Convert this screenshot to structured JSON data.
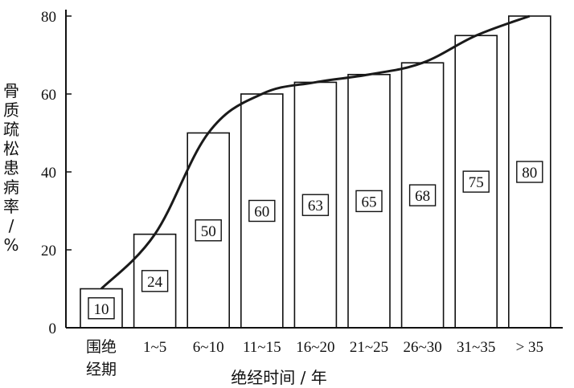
{
  "chart_data": {
    "type": "bar",
    "categories": [
      "围绝经期",
      "1~5",
      "6~10",
      "11~15",
      "16~20",
      "21~25",
      "26~30",
      "31~35",
      "> 35"
    ],
    "category_lines": [
      [
        "围绝",
        "经期"
      ],
      [
        "1~5"
      ],
      [
        "6~10"
      ],
      [
        "11~15"
      ],
      [
        "16~20"
      ],
      [
        "21~25"
      ],
      [
        "26~30"
      ],
      [
        "31~35"
      ],
      [
        "> 35"
      ]
    ],
    "values": [
      10,
      24,
      50,
      60,
      63,
      65,
      68,
      75,
      80
    ],
    "data_labels": [
      "10",
      "24",
      "50",
      "60",
      "63",
      "65",
      "68",
      "75",
      "80"
    ],
    "trend_line": true,
    "xlabel": "绝经时间 / 年",
    "ylabel": "骨质疏松患病率/%",
    "ylim": [
      0,
      80
    ],
    "yticks": [
      0,
      20,
      40,
      60,
      80
    ],
    "grid": false,
    "legend": "none",
    "colors": {
      "bar_fill": "#ffffff",
      "stroke": "#111111",
      "line": "#1a1a1a"
    }
  }
}
